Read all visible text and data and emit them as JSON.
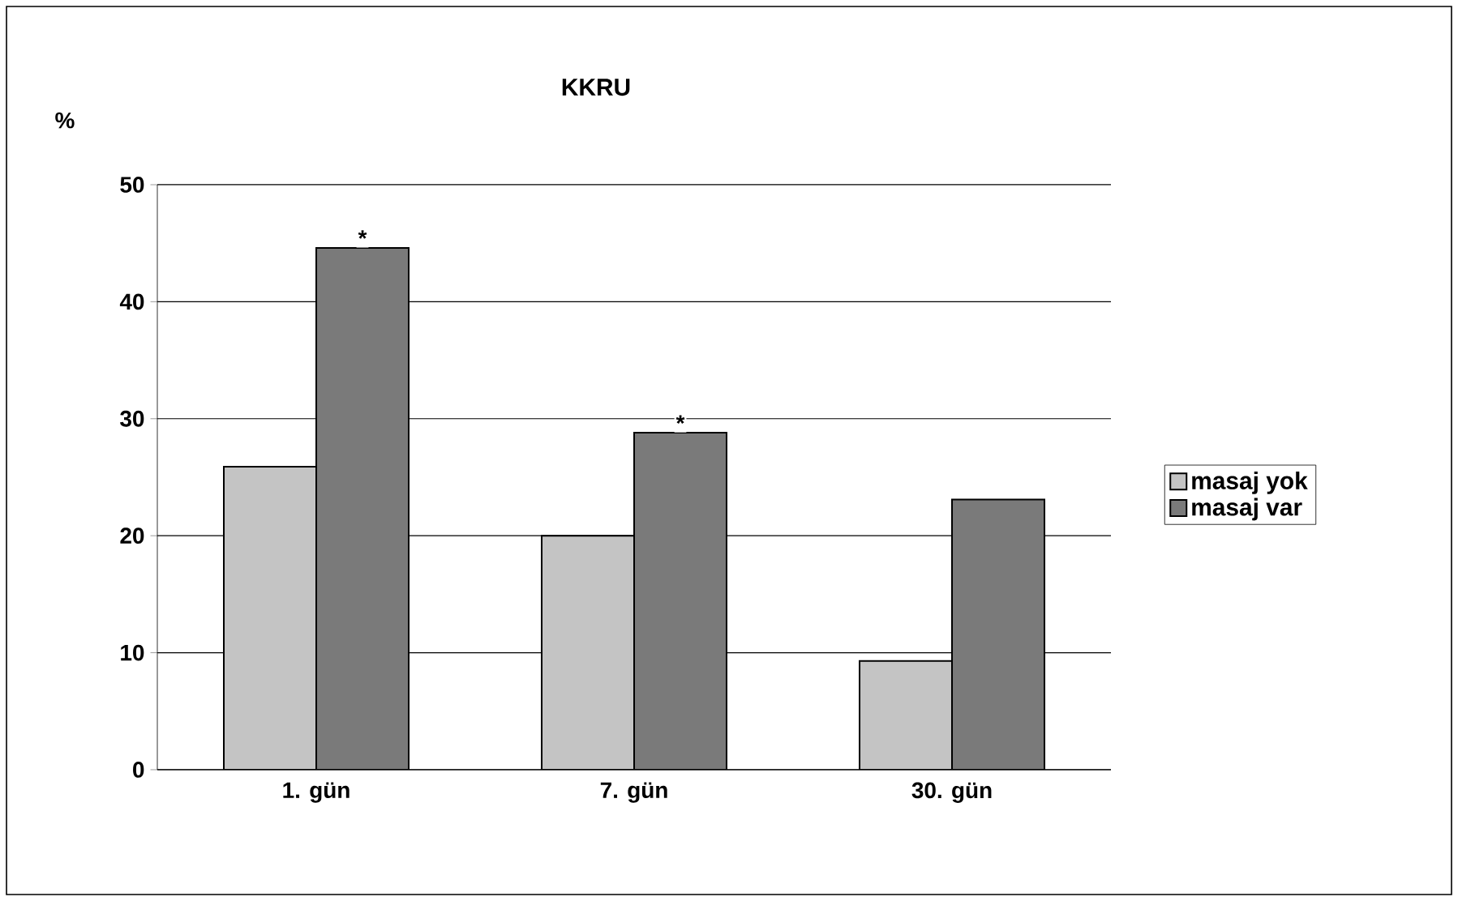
{
  "chart_data": {
    "type": "bar",
    "title": "KKRU",
    "ylabel": "%",
    "categories": [
      "1. gün",
      "7. gün",
      "30. gün"
    ],
    "series": [
      {
        "name": "masaj yok",
        "color": "#c4c4c4",
        "values": [
          25.9,
          20,
          9.3
        ]
      },
      {
        "name": "masaj var",
        "color": "#7a7a7a",
        "values": [
          44.6,
          28.8,
          23.1
        ]
      }
    ],
    "ylim": [
      0,
      50
    ],
    "yticks": [
      0,
      10,
      20,
      30,
      40,
      50
    ],
    "grid": "y",
    "legend": "right",
    "annotations": [
      {
        "text": "*",
        "x": "1. gün",
        "y": 44.6
      },
      {
        "text": "*",
        "x": "7. gün",
        "y": 28.8
      }
    ]
  }
}
